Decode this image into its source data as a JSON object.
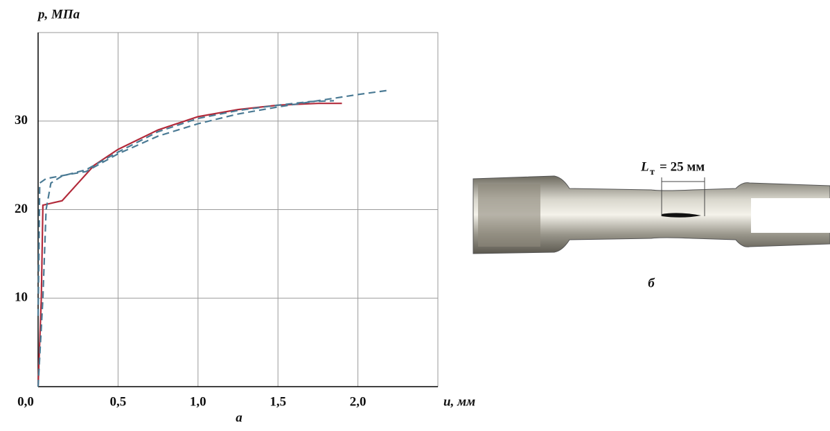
{
  "chart_data": {
    "type": "line",
    "y_label": "p, МПа",
    "x_label": "u, мм",
    "caption": "а",
    "xlim": [
      0,
      2.5
    ],
    "ylim": [
      0,
      40
    ],
    "xticks": [
      {
        "value": 0,
        "label": "0,0"
      },
      {
        "value": 0.5,
        "label": "0,5"
      },
      {
        "value": 1,
        "label": "1,0"
      },
      {
        "value": 1.5,
        "label": "1,5"
      },
      {
        "value": 2,
        "label": "2,0"
      }
    ],
    "yticks": [
      10,
      20,
      30
    ],
    "grid": true,
    "series": [
      {
        "color": "#b22a3a",
        "dash": false,
        "x": [
          0,
          0.02,
          0.03,
          0.1,
          0.15,
          0.25,
          0.35,
          0.5,
          0.75,
          1.0,
          1.25,
          1.5,
          1.75,
          1.9
        ],
        "values": [
          0,
          10,
          20.5,
          20.8,
          21,
          23,
          25,
          26.8,
          29,
          30.5,
          31.3,
          31.8,
          32,
          32
        ]
      },
      {
        "color": "#4a7a94",
        "dash": true,
        "x": [
          0,
          0.005,
          0.01,
          0.05,
          0.2,
          0.3,
          0.5,
          0.75,
          1.0,
          1.25,
          1.5,
          1.75,
          2.0,
          2.2
        ],
        "values": [
          8,
          15,
          23,
          23.5,
          24,
          24.3,
          26.3,
          28.3,
          29.7,
          30.8,
          31.6,
          32.3,
          33,
          33.5
        ]
      },
      {
        "color": "#4a7a94",
        "dash": true,
        "x": [
          0,
          0.03,
          0.05,
          0.08,
          0.15,
          0.3,
          0.5,
          0.75,
          1.0,
          1.25,
          1.5,
          1.7,
          1.85
        ],
        "values": [
          0,
          10,
          20,
          23,
          23.8,
          24.5,
          26.5,
          28.8,
          30.3,
          31.2,
          31.8,
          32.2,
          32.3
        ]
      }
    ]
  },
  "photo": {
    "label_main": "L",
    "label_sub": "т",
    "label_rest": "= 25 мм",
    "caption": "б"
  }
}
